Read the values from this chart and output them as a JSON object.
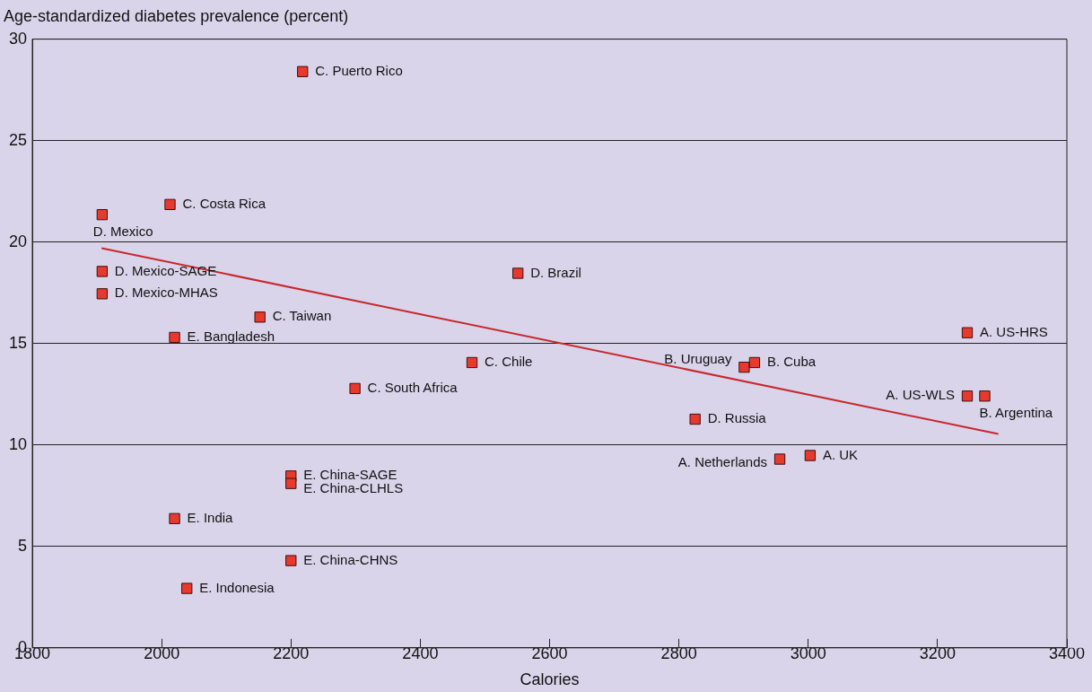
{
  "chart_data": {
    "type": "scatter",
    "ylabel": "Age-standardized diabetes prevalence (percent)",
    "xlabel": "Calories",
    "xlim": [
      1800,
      3400
    ],
    "xticks": [
      1800,
      2000,
      2200,
      2400,
      2600,
      2800,
      3000,
      3200,
      3400
    ],
    "ylim": [
      0,
      30
    ],
    "yticks": [
      0,
      5,
      10,
      15,
      20,
      25,
      30
    ],
    "grid": "y",
    "legend": false,
    "series": [
      {
        "marker": "square",
        "color": "#e8392e",
        "x": [
          2218,
          2013,
          1908,
          1908,
          1908,
          2152,
          2020,
          2551,
          2480,
          2299,
          2901,
          2917,
          3246,
          3246,
          3273,
          2825,
          2956,
          3003,
          2200,
          2200,
          2020,
          2200,
          2039
        ],
        "values": [
          28.4,
          21.85,
          21.35,
          18.55,
          17.45,
          16.3,
          15.3,
          18.46,
          14.06,
          12.78,
          13.83,
          14.06,
          15.53,
          12.41,
          12.41,
          11.27,
          9.3,
          9.48,
          8.47,
          8.1,
          6.37,
          4.3,
          2.93
        ]
      },
      {
        "type": "line",
        "marker": "none",
        "color": "#c8282d",
        "x": [
          1907,
          3294
        ],
        "values": [
          19.7,
          10.54
        ]
      }
    ],
    "annotations": [
      {
        "text": "C. Puerto Rico",
        "x": 2218,
        "y": 28.4
      },
      {
        "text": "C. Costa Rica",
        "x": 2013,
        "y": 21.85
      },
      {
        "text": "D. Mexico",
        "x": 1908,
        "y": 21.35
      },
      {
        "text": "D. Mexico-SAGE",
        "x": 1908,
        "y": 18.55
      },
      {
        "text": "D. Mexico-MHAS",
        "x": 1908,
        "y": 17.45
      },
      {
        "text": "C. Taiwan",
        "x": 2152,
        "y": 16.3
      },
      {
        "text": "E. Bangladesh",
        "x": 2020,
        "y": 15.3
      },
      {
        "text": "D. Brazil",
        "x": 2551,
        "y": 18.46
      },
      {
        "text": "C. Chile",
        "x": 2480,
        "y": 14.06
      },
      {
        "text": "C. South Africa",
        "x": 2299,
        "y": 12.78
      },
      {
        "text": "B. Uruguay",
        "x": 2901,
        "y": 13.83
      },
      {
        "text": "B. Cuba",
        "x": 2917,
        "y": 14.06
      },
      {
        "text": "A. US-HRS",
        "x": 3246,
        "y": 15.53
      },
      {
        "text": "A. US-WLS",
        "x": 3246,
        "y": 12.41
      },
      {
        "text": "B. Argentina",
        "x": 3273,
        "y": 12.41
      },
      {
        "text": "D. Russia",
        "x": 2825,
        "y": 11.27
      },
      {
        "text": "A. Netherlands",
        "x": 2956,
        "y": 9.3
      },
      {
        "text": "A. UK",
        "x": 3003,
        "y": 9.48
      },
      {
        "text": "E. China-SAGE",
        "x": 2200,
        "y": 8.47
      },
      {
        "text": "E. China-CLHLS",
        "x": 2200,
        "y": 8.1
      },
      {
        "text": "E. India",
        "x": 2020,
        "y": 6.37
      },
      {
        "text": "E. China-CHNS",
        "x": 2200,
        "y": 4.3
      },
      {
        "text": "E. Indonesia",
        "x": 2039,
        "y": 2.93
      }
    ]
  }
}
